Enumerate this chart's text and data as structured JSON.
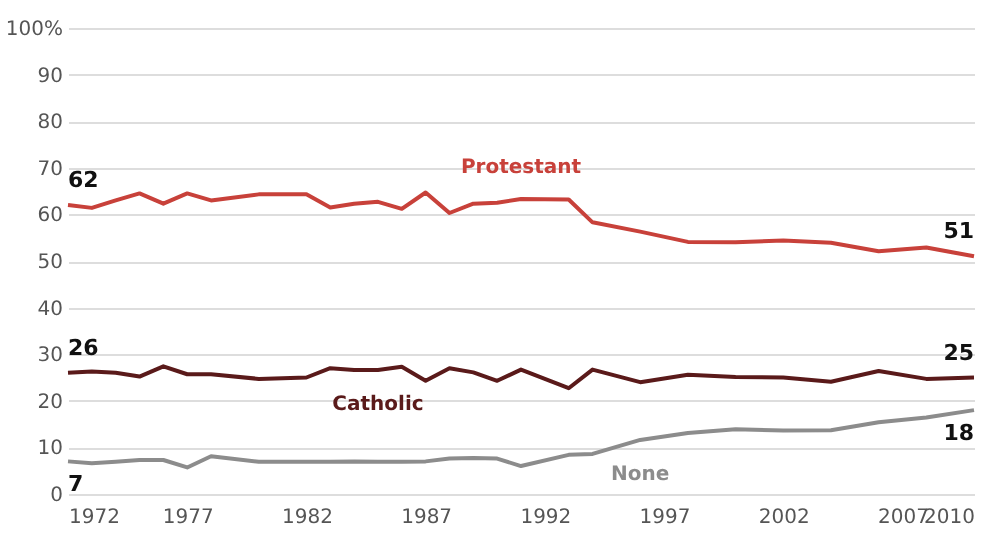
{
  "chart_data": {
    "type": "line",
    "x": [
      1972,
      1973,
      1974,
      1975,
      1976,
      1977,
      1978,
      1980,
      1982,
      1983,
      1984,
      1985,
      1986,
      1987,
      1988,
      1989,
      1990,
      1991,
      1993,
      1994,
      1996,
      1998,
      2000,
      2002,
      2004,
      2006,
      2008,
      2010
    ],
    "series": [
      {
        "name": "Protestant",
        "color": "#c8413a",
        "values": [
          62,
          61.4,
          63,
          64.5,
          62.3,
          64.5,
          63,
          64.3,
          64.3,
          61.5,
          62.3,
          62.7,
          61.2,
          64.7,
          60.3,
          62.3,
          62.5,
          63.3,
          63.2,
          58.3,
          56.3,
          54.1,
          54,
          54.4,
          53.9,
          52.1,
          52.9,
          51
        ],
        "value_labels": [
          "62",
          null,
          null,
          null,
          null,
          null,
          null,
          null,
          null,
          null,
          null,
          null,
          null,
          null,
          null,
          null,
          null,
          null,
          null,
          null,
          null,
          null,
          null,
          null,
          null,
          null,
          null,
          "51"
        ]
      },
      {
        "name": "Catholic",
        "color": "#5a1a1a",
        "values": [
          26,
          26.3,
          26,
          25.2,
          27.4,
          25.7,
          25.7,
          24.7,
          25,
          27,
          26.6,
          26.6,
          27.3,
          24.3,
          27,
          26.1,
          24.3,
          26.7,
          22.7,
          26.7,
          24,
          25.6,
          25.1,
          25,
          24.1,
          26.4,
          24.7,
          25
        ],
        "value_labels": [
          "26",
          null,
          null,
          null,
          null,
          null,
          null,
          null,
          null,
          null,
          null,
          null,
          null,
          null,
          null,
          null,
          null,
          null,
          null,
          null,
          null,
          null,
          null,
          null,
          null,
          null,
          null,
          "25"
        ]
      },
      {
        "name": "None",
        "color": "#8c8c8c",
        "values": [
          7,
          6.6,
          6.9,
          7.3,
          7.3,
          5.7,
          8.1,
          6.9,
          6.9,
          6.9,
          7,
          6.9,
          6.9,
          7,
          7.6,
          7.7,
          7.6,
          6,
          8.4,
          8.6,
          11.6,
          13.1,
          13.9,
          13.6,
          13.7,
          15.4,
          16.4,
          18
        ],
        "value_labels": [
          "7",
          null,
          null,
          null,
          null,
          null,
          null,
          null,
          null,
          null,
          null,
          null,
          null,
          null,
          null,
          null,
          null,
          null,
          null,
          null,
          null,
          null,
          null,
          null,
          null,
          null,
          null,
          "18"
        ]
      }
    ],
    "xlim": [
      1972,
      2010
    ],
    "xticks": [
      1972,
      1977,
      1982,
      1987,
      1992,
      1997,
      2002,
      2007,
      2010
    ],
    "ylim": [
      0,
      100
    ],
    "yticks": [
      0,
      10,
      20,
      30,
      40,
      50,
      60,
      70,
      80,
      90,
      {
        "value": 100,
        "label": "100%"
      }
    ],
    "grid": "y",
    "marker": "none",
    "line_style": "solid"
  }
}
